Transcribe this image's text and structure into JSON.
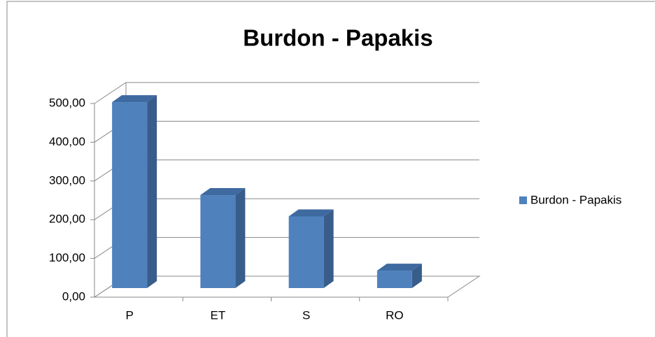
{
  "chart_data": {
    "type": "bar3d",
    "title": "Burdon - Papakis",
    "categories": [
      "P",
      "ET",
      "S",
      "RO"
    ],
    "series": [
      {
        "name": "Burdon - Papakis",
        "color": "#4f81bd",
        "values": [
          480,
          240,
          185,
          45
        ]
      }
    ],
    "ylim": [
      0,
      500
    ],
    "yticks": [
      {
        "value": 0,
        "label": "0,00"
      },
      {
        "value": 100,
        "label": "100,00"
      },
      {
        "value": 200,
        "label": "200,00"
      },
      {
        "value": 300,
        "label": "300,00"
      },
      {
        "value": 400,
        "label": "400,00"
      },
      {
        "value": 500,
        "label": "500,00"
      }
    ],
    "grid": true,
    "legend": "right"
  }
}
